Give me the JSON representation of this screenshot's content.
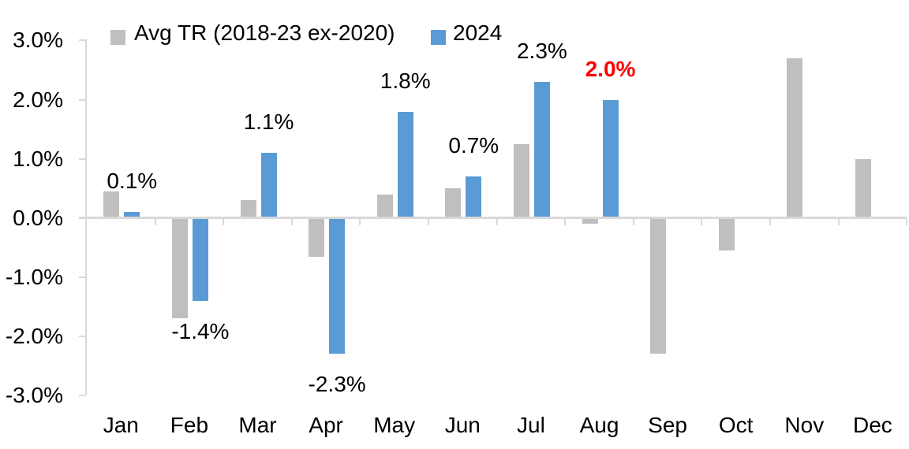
{
  "chart_data": {
    "type": "bar",
    "title": "",
    "xlabel": "",
    "ylabel": "",
    "categories": [
      "Jan",
      "Feb",
      "Mar",
      "Apr",
      "May",
      "Jun",
      "Jul",
      "Aug",
      "Sep",
      "Oct",
      "Nov",
      "Dec"
    ],
    "series": [
      {
        "name": "Avg TR (2018-23 ex-2020)",
        "color": "#BFBFBF",
        "values": [
          0.45,
          -1.7,
          0.3,
          -0.65,
          0.4,
          0.5,
          1.25,
          -0.1,
          -2.3,
          -0.55,
          2.7,
          1.0
        ]
      },
      {
        "name": "2024",
        "color": "#5B9BD5",
        "values": [
          0.1,
          -1.4,
          1.1,
          -2.3,
          1.8,
          0.7,
          2.3,
          2.0,
          null,
          null,
          null,
          null
        ],
        "data_labels": [
          {
            "text": "0.1%",
            "color": "#000000",
            "bold": false
          },
          {
            "text": "-1.4%",
            "color": "#000000",
            "bold": false
          },
          {
            "text": "1.1%",
            "color": "#000000",
            "bold": false
          },
          {
            "text": "-2.3%",
            "color": "#000000",
            "bold": false
          },
          {
            "text": "1.8%",
            "color": "#000000",
            "bold": false
          },
          {
            "text": "0.7%",
            "color": "#000000",
            "bold": false
          },
          {
            "text": "2.3%",
            "color": "#000000",
            "bold": false
          },
          {
            "text": "2.0%",
            "color": "#FF0000",
            "bold": true
          },
          null,
          null,
          null,
          null
        ]
      }
    ],
    "ylim": [
      -3.0,
      3.0
    ],
    "y_tick_labels": [
      "3.0%",
      "2.0%",
      "1.0%",
      "0.0%",
      "-1.0%",
      "-2.0%",
      "-3.0%"
    ],
    "y_tick_values": [
      3,
      2,
      1,
      0,
      -1,
      -2,
      -3
    ],
    "grid": false,
    "legend_position": "top",
    "axis_color": "#D9D9D9",
    "text_color": "#000000"
  }
}
